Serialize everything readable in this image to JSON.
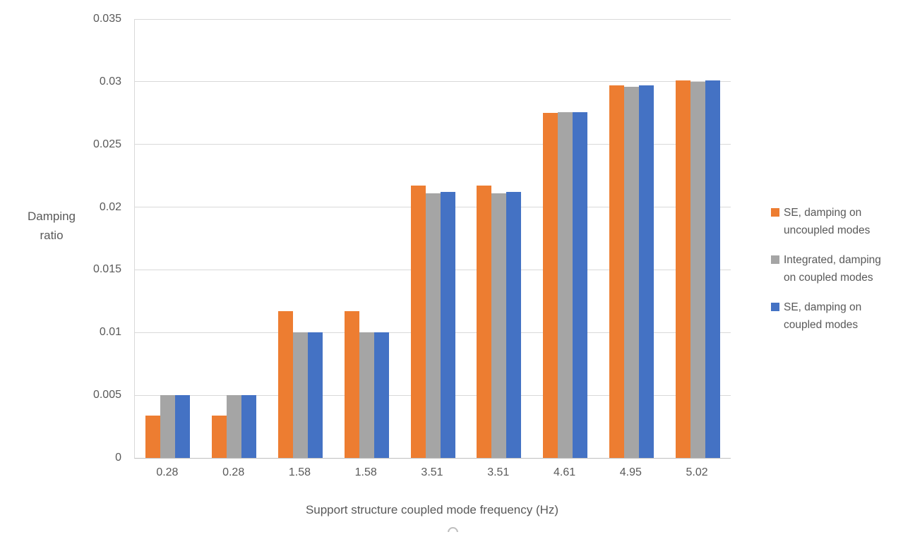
{
  "chart_data": {
    "type": "bar",
    "title": "",
    "xlabel": "Support structure coupled mode frequency (Hz)",
    "ylabel": "Damping ratio",
    "ylabel_display": "Damping\nratio",
    "categories": [
      "0.28",
      "0.28",
      "1.58",
      "1.58",
      "3.51",
      "3.51",
      "4.61",
      "4.95",
      "5.02"
    ],
    "series": [
      {
        "name": "SE, damping on uncoupled modes",
        "color": "#ED7D31",
        "values": [
          0.0034,
          0.0034,
          0.0117,
          0.0117,
          0.0217,
          0.0217,
          0.0275,
          0.0297,
          0.0301
        ]
      },
      {
        "name": "Integrated, damping on coupled modes",
        "color": "#A5A5A5",
        "values": [
          0.005,
          0.005,
          0.01,
          0.01,
          0.0211,
          0.0211,
          0.0276,
          0.0296,
          0.03
        ]
      },
      {
        "name": "SE, damping on coupled modes",
        "color": "#4472C4",
        "values": [
          0.005,
          0.005,
          0.01,
          0.01,
          0.0212,
          0.0212,
          0.0276,
          0.0297,
          0.0301
        ]
      }
    ],
    "ylim": [
      0,
      0.035
    ],
    "ytick_step": 0.005,
    "yticks": [
      "0",
      "0.005",
      "0.01",
      "0.015",
      "0.02",
      "0.025",
      "0.03",
      "0.035"
    ],
    "grid": true,
    "legend_position": "right"
  },
  "legend": {
    "items": [
      {
        "label_lines": [
          "SE, damping on",
          "uncoupled modes"
        ],
        "color": "#ED7D31"
      },
      {
        "label_lines": [
          "Integrated, damping",
          "on coupled modes"
        ],
        "color": "#A5A5A5"
      },
      {
        "label_lines": [
          "SE, damping on",
          "coupled modes"
        ],
        "color": "#4472C4"
      }
    ]
  },
  "colors": {
    "series_orange": "#ED7D31",
    "series_gray": "#A5A5A5",
    "series_blue": "#4472C4",
    "gridline": "#D9D9D9",
    "axis_line": "#BFBFBF",
    "text": "#595959",
    "background": "#FFFFFF"
  }
}
